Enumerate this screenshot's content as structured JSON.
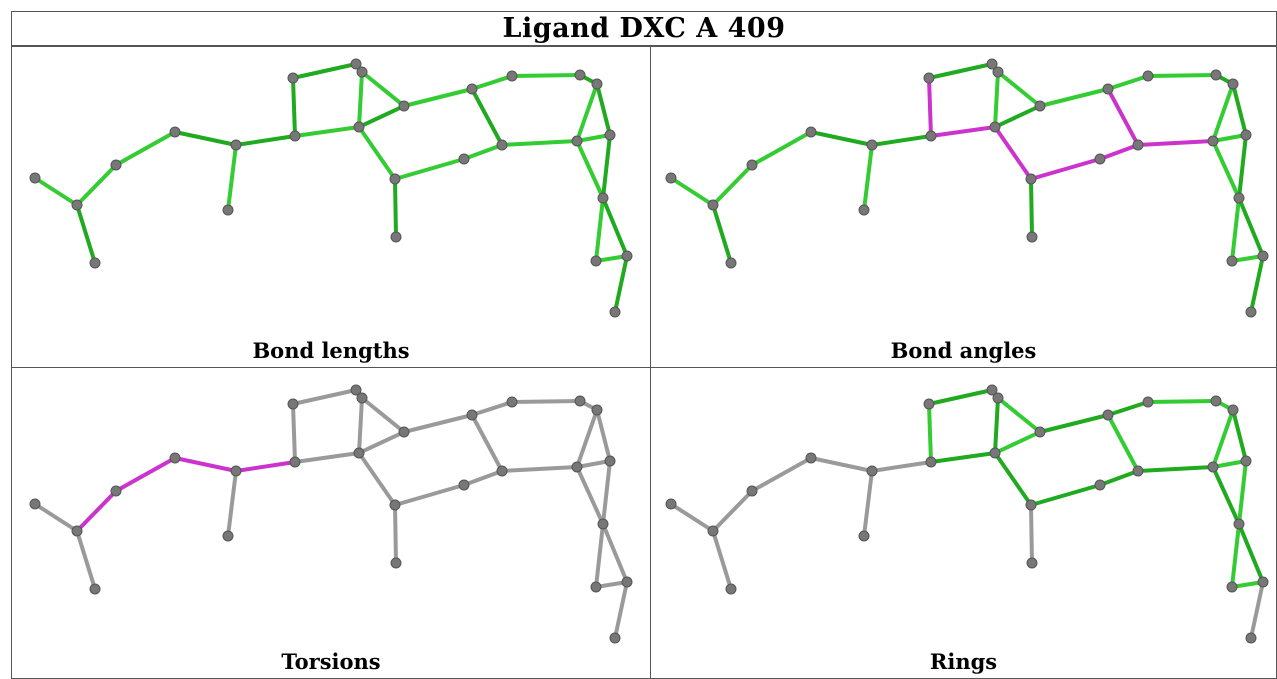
{
  "title": "Ligand DXC A 409",
  "panels": [
    {
      "id": "bond-lengths",
      "caption": "Bond lengths"
    },
    {
      "id": "bond-angles",
      "caption": "Bond angles"
    },
    {
      "id": "torsions",
      "caption": "Torsions"
    },
    {
      "id": "rings",
      "caption": "Rings"
    }
  ],
  "colors": {
    "green": "#33cc33",
    "green_dark": "#1faa1f",
    "magenta": "#cc33cc",
    "gray_bond": "#9a9a9a",
    "atom": "#777777"
  }
}
